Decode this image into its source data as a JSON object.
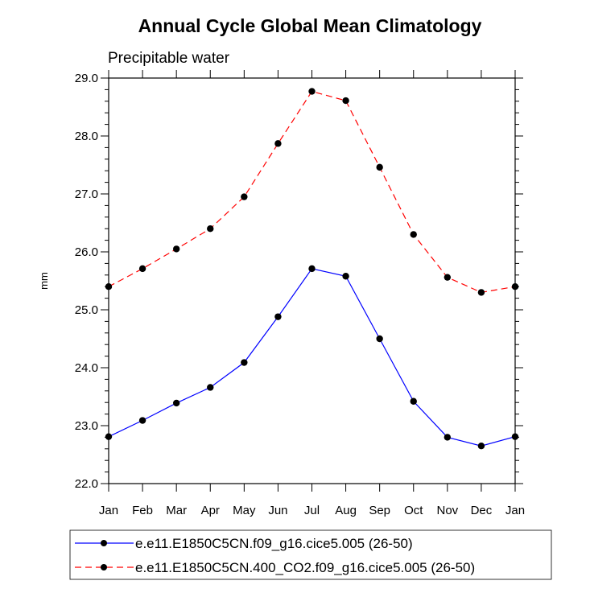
{
  "chart_data": {
    "type": "line",
    "title": "Annual Cycle Global Mean Climatology",
    "subtitle": "Precipitable water",
    "xlabel": "",
    "ylabel": "mm",
    "categories": [
      "Jan",
      "Feb",
      "Mar",
      "Apr",
      "May",
      "Jun",
      "Jul",
      "Aug",
      "Sep",
      "Oct",
      "Nov",
      "Dec",
      "Jan"
    ],
    "ylim": [
      22.0,
      29.0
    ],
    "yticks": [
      "22.0",
      "23.0",
      "24.0",
      "25.0",
      "26.0",
      "27.0",
      "28.0",
      "29.0"
    ],
    "series": [
      {
        "name": "e.e11.E1850C5CN.f09_g16.cice5.005 (26-50)",
        "color": "#0000ff",
        "dash": "solid",
        "values": [
          22.81,
          23.09,
          23.39,
          23.66,
          24.09,
          24.88,
          25.71,
          25.58,
          24.5,
          23.42,
          22.8,
          22.65,
          22.81
        ]
      },
      {
        "name": "e.e11.E1850C5CN.400_CO2.f09_g16.cice5.005 (26-50)",
        "color": "#ff0000",
        "dash": "dashed",
        "values": [
          25.4,
          25.71,
          26.05,
          26.4,
          26.95,
          27.87,
          28.77,
          28.61,
          27.46,
          26.3,
          25.56,
          25.3,
          25.4
        ]
      }
    ]
  }
}
